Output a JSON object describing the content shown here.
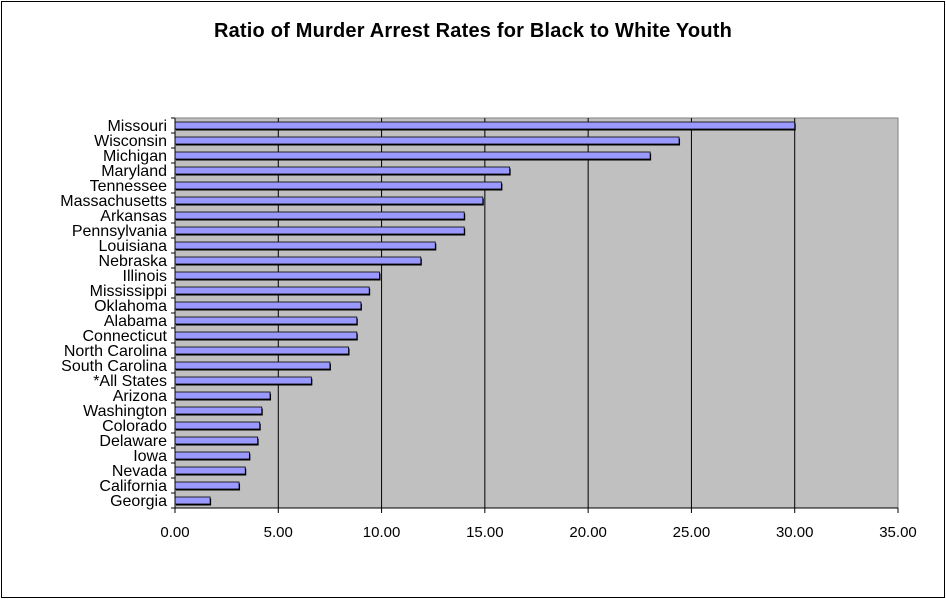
{
  "chart_data": {
    "type": "bar",
    "orientation": "horizontal",
    "title": "Ratio of Murder Arrest Rates for Black to White Youth",
    "xlabel": "",
    "ylabel": "",
    "xlim": [
      0,
      35
    ],
    "xticks": [
      "0.00",
      "5.00",
      "10.00",
      "15.00",
      "20.00",
      "25.00",
      "30.00",
      "35.00"
    ],
    "grid": "vertical",
    "legend": "none",
    "categories": [
      "Missouri",
      "Wisconsin",
      "Michigan",
      "Maryland",
      "Tennessee",
      "Massachusetts",
      "Arkansas",
      "Pennsylvania",
      "Louisiana",
      "Nebraska",
      "Illinois",
      "Mississippi",
      "Oklahoma",
      "Alabama",
      "Connecticut",
      "North Carolina",
      "South Carolina",
      "*All States",
      "Arizona",
      "Washington",
      "Colorado",
      "Delaware",
      "Iowa",
      "Nevada",
      "California",
      "Georgia"
    ],
    "values": [
      30.0,
      24.4,
      23.0,
      16.2,
      15.8,
      14.9,
      14.0,
      14.0,
      12.6,
      11.9,
      9.9,
      9.4,
      9.0,
      8.8,
      8.8,
      8.4,
      7.5,
      6.6,
      4.6,
      4.2,
      4.1,
      4.0,
      3.6,
      3.4,
      3.1,
      1.7
    ],
    "colors": {
      "bar": "#9999ff",
      "plot_bg": "#c0c0c0"
    }
  }
}
